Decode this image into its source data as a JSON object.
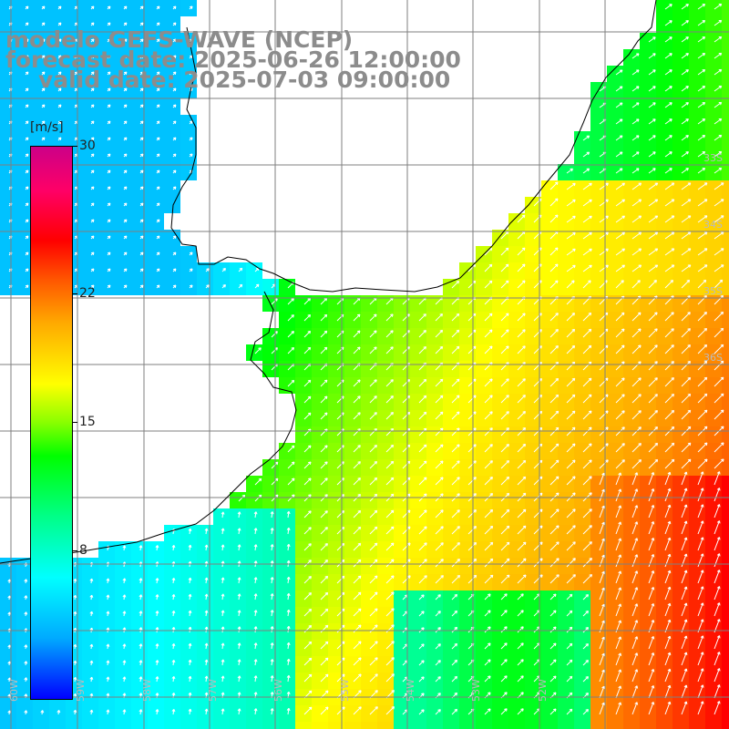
{
  "title": {
    "line1": "modelo GEFS-WAVE (NCEP)",
    "line2": "forecast date: 2025-06-26 12:00:00",
    "line3": "valid date: 2025-07-03 09:00:00"
  },
  "colorbar": {
    "unit": "[m/s]",
    "min": 0,
    "max": 30,
    "ticks": [
      {
        "label": "30",
        "value": 30
      },
      {
        "label": "22",
        "value": 22
      },
      {
        "label": "15",
        "value": 15
      },
      {
        "label": "8",
        "value": 8
      }
    ]
  },
  "map": {
    "lat_labels": [
      "33S",
      "34S",
      "35S",
      "36S"
    ],
    "lon_labels": [
      "60W",
      "59W",
      "58W",
      "57W",
      "56W",
      "55W",
      "54W",
      "53W",
      "52W"
    ],
    "colors": {
      "land": "#ffffff",
      "coast": "#000000",
      "grid": "#7f7f7f",
      "arrow": "#ffffff"
    }
  }
}
